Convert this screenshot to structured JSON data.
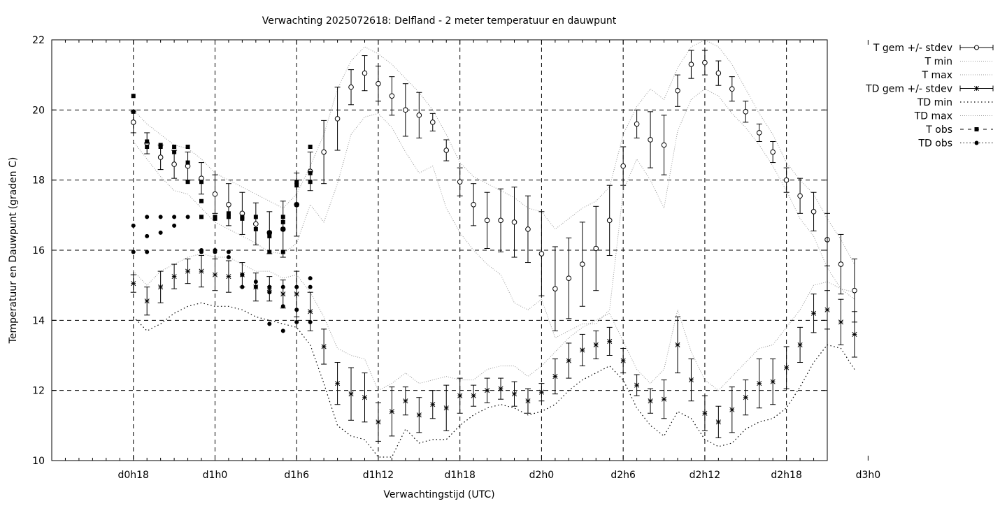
{
  "chart_data": {
    "type": "line",
    "title": "Verwachting 2025072618: Delfland - 2 meter temperatuur en dauwpunt",
    "xlabel": "Verwachtingstijd (UTC)",
    "ylabel": "Temperatuur en Dauwpunt (graden C)",
    "x_unit": "hours since forecast start (2025072618)",
    "xlim": [
      12,
      69
    ],
    "ylim": [
      10,
      22
    ],
    "yticks": [
      10,
      12,
      14,
      16,
      18,
      20,
      22
    ],
    "xticks": [
      {
        "x": 18,
        "label": "d0h18"
      },
      {
        "x": 24,
        "label": "d1h0"
      },
      {
        "x": 30,
        "label": "d1h6"
      },
      {
        "x": 36,
        "label": "d1h12"
      },
      {
        "x": 42,
        "label": "d1h18"
      },
      {
        "x": 48,
        "label": "d2h0"
      },
      {
        "x": 54,
        "label": "d2h6"
      },
      {
        "x": 60,
        "label": "d2h12"
      },
      {
        "x": 66,
        "label": "d2h18"
      },
      {
        "x": 72,
        "label": "d3h0"
      }
    ],
    "grid": true,
    "legend_position": "outside-right",
    "legend": [
      {
        "key": "t_mean",
        "label": "T gem +/- stdev"
      },
      {
        "key": "t_min",
        "label": "T min"
      },
      {
        "key": "t_max",
        "label": "T max"
      },
      {
        "key": "td_mean",
        "label": "TD gem +/- stdev"
      },
      {
        "key": "td_min",
        "label": "TD min"
      },
      {
        "key": "td_max",
        "label": "TD max"
      },
      {
        "key": "t_obs",
        "label": "T obs"
      },
      {
        "key": "td_obs",
        "label": "TD obs"
      }
    ],
    "t_mean": [
      [
        18,
        19.65,
        0.3
      ],
      [
        19,
        19.05,
        0.3
      ],
      [
        20,
        18.65,
        0.35
      ],
      [
        21,
        18.45,
        0.4
      ],
      [
        22,
        18.4,
        0.4
      ],
      [
        23,
        18.05,
        0.45
      ],
      [
        24,
        17.6,
        0.55
      ],
      [
        25,
        17.3,
        0.6
      ],
      [
        26,
        17.05,
        0.6
      ],
      [
        27,
        16.75,
        0.6
      ],
      [
        28,
        16.5,
        0.6
      ],
      [
        29,
        16.6,
        0.8
      ],
      [
        30,
        17.3,
        0.9
      ],
      [
        31,
        18.25,
        0.55
      ],
      [
        32,
        18.8,
        0.9
      ],
      [
        33,
        19.75,
        0.9
      ],
      [
        34,
        20.65,
        0.5
      ],
      [
        35,
        21.05,
        0.5
      ],
      [
        36,
        20.75,
        0.5
      ],
      [
        37,
        20.4,
        0.55
      ],
      [
        38,
        20.0,
        0.75
      ],
      [
        39,
        19.85,
        0.65
      ],
      [
        40,
        19.65,
        0.25
      ],
      [
        41,
        18.85,
        0.3
      ],
      [
        42,
        17.95,
        0.4
      ],
      [
        43,
        17.3,
        0.6
      ],
      [
        44,
        16.85,
        0.8
      ],
      [
        45,
        16.85,
        0.9
      ],
      [
        46,
        16.8,
        1.0
      ],
      [
        47,
        16.6,
        0.95
      ],
      [
        48,
        15.9,
        1.2
      ],
      [
        49,
        14.9,
        1.2
      ],
      [
        50,
        15.2,
        1.15
      ],
      [
        51,
        15.6,
        1.2
      ],
      [
        52,
        16.05,
        1.2
      ],
      [
        53,
        16.85,
        1.0
      ],
      [
        54,
        18.4,
        0.55
      ],
      [
        55,
        19.6,
        0.4
      ],
      [
        56,
        19.15,
        0.8
      ],
      [
        57,
        19.0,
        0.85
      ],
      [
        58,
        20.55,
        0.45
      ],
      [
        59,
        21.3,
        0.4
      ],
      [
        60,
        21.35,
        0.35
      ],
      [
        61,
        21.05,
        0.35
      ],
      [
        62,
        20.6,
        0.35
      ],
      [
        63,
        19.95,
        0.3
      ],
      [
        64,
        19.35,
        0.25
      ],
      [
        65,
        18.8,
        0.3
      ],
      [
        66,
        18.0,
        0.35
      ],
      [
        67,
        17.55,
        0.5
      ],
      [
        68,
        17.1,
        0.55
      ],
      [
        69,
        16.3,
        0.75
      ],
      [
        70,
        15.6,
        0.85
      ],
      [
        71,
        14.85,
        0.9
      ]
    ],
    "td_mean": [
      [
        18,
        15.05,
        0.25
      ],
      [
        19,
        14.55,
        0.4
      ],
      [
        20,
        14.95,
        0.45
      ],
      [
        21,
        15.25,
        0.35
      ],
      [
        22,
        15.4,
        0.35
      ],
      [
        23,
        15.4,
        0.45
      ],
      [
        24,
        15.3,
        0.45
      ],
      [
        25,
        15.25,
        0.45
      ],
      [
        26,
        15.3,
        0.35
      ],
      [
        27,
        14.95,
        0.4
      ],
      [
        28,
        14.9,
        0.35
      ],
      [
        29,
        14.75,
        0.4
      ],
      [
        30,
        14.75,
        0.65
      ],
      [
        31,
        14.25,
        0.55
      ],
      [
        32,
        13.25,
        0.5
      ],
      [
        33,
        12.2,
        0.6
      ],
      [
        34,
        11.9,
        0.75
      ],
      [
        35,
        11.8,
        0.7
      ],
      [
        36,
        11.1,
        0.55
      ],
      [
        37,
        11.4,
        0.7
      ],
      [
        38,
        11.7,
        0.4
      ],
      [
        39,
        11.3,
        0.5
      ],
      [
        40,
        11.6,
        0.4
      ],
      [
        41,
        11.5,
        0.65
      ],
      [
        42,
        11.85,
        0.5
      ],
      [
        43,
        11.85,
        0.3
      ],
      [
        44,
        12.0,
        0.35
      ],
      [
        45,
        12.05,
        0.3
      ],
      [
        46,
        11.9,
        0.35
      ],
      [
        47,
        11.7,
        0.35
      ],
      [
        48,
        11.95,
        0.25
      ],
      [
        49,
        12.4,
        0.5
      ],
      [
        50,
        12.85,
        0.5
      ],
      [
        51,
        13.15,
        0.45
      ],
      [
        52,
        13.3,
        0.4
      ],
      [
        53,
        13.4,
        0.4
      ],
      [
        54,
        12.85,
        0.35
      ],
      [
        55,
        12.15,
        0.3
      ],
      [
        56,
        11.7,
        0.35
      ],
      [
        57,
        11.75,
        0.55
      ],
      [
        58,
        13.3,
        0.8
      ],
      [
        59,
        12.3,
        0.6
      ],
      [
        60,
        11.35,
        0.5
      ],
      [
        61,
        11.1,
        0.45
      ],
      [
        62,
        11.45,
        0.65
      ],
      [
        63,
        11.8,
        0.5
      ],
      [
        64,
        12.2,
        0.7
      ],
      [
        65,
        12.25,
        0.65
      ],
      [
        66,
        12.65,
        0.6
      ],
      [
        67,
        13.3,
        0.5
      ],
      [
        68,
        14.2,
        0.55
      ],
      [
        69,
        14.3,
        0.55
      ],
      [
        70,
        13.95,
        0.65
      ],
      [
        71,
        13.6,
        0.65
      ]
    ],
    "t_min": [
      [
        18,
        19.1
      ],
      [
        19,
        18.6
      ],
      [
        20,
        18.1
      ],
      [
        21,
        17.7
      ],
      [
        22,
        17.6
      ],
      [
        23,
        17.2
      ],
      [
        24,
        16.8
      ],
      [
        25,
        16.6
      ],
      [
        26,
        16.4
      ],
      [
        27,
        16.2
      ],
      [
        28,
        15.95
      ],
      [
        29,
        15.9
      ],
      [
        30,
        16.2
      ],
      [
        31,
        17.3
      ],
      [
        32,
        16.8
      ],
      [
        33,
        17.9
      ],
      [
        34,
        19.3
      ],
      [
        35,
        19.8
      ],
      [
        36,
        19.9
      ],
      [
        37,
        19.5
      ],
      [
        38,
        18.8
      ],
      [
        39,
        18.2
      ],
      [
        40,
        18.4
      ],
      [
        41,
        17.2
      ],
      [
        42,
        16.5
      ],
      [
        43,
        16.0
      ],
      [
        44,
        15.6
      ],
      [
        45,
        15.3
      ],
      [
        46,
        14.5
      ],
      [
        47,
        14.3
      ],
      [
        48,
        14.6
      ],
      [
        49,
        13.5
      ],
      [
        50,
        13.7
      ],
      [
        51,
        13.9
      ],
      [
        52,
        13.9
      ],
      [
        53,
        14.3
      ],
      [
        54,
        17.7
      ],
      [
        55,
        18.6
      ],
      [
        56,
        18.0
      ],
      [
        57,
        17.2
      ],
      [
        58,
        19.4
      ],
      [
        59,
        20.3
      ],
      [
        60,
        20.6
      ],
      [
        61,
        20.4
      ],
      [
        62,
        19.9
      ],
      [
        63,
        19.5
      ],
      [
        64,
        19.0
      ],
      [
        65,
        18.4
      ],
      [
        66,
        17.7
      ],
      [
        67,
        16.9
      ],
      [
        68,
        16.4
      ],
      [
        69,
        15.5
      ],
      [
        70,
        14.9
      ],
      [
        71,
        14.6
      ]
    ],
    "t_max": [
      [
        18,
        20.0
      ],
      [
        19,
        19.6
      ],
      [
        20,
        19.3
      ],
      [
        21,
        19.0
      ],
      [
        22,
        18.9
      ],
      [
        23,
        18.6
      ],
      [
        24,
        18.2
      ],
      [
        25,
        18.0
      ],
      [
        26,
        17.8
      ],
      [
        27,
        17.6
      ],
      [
        28,
        17.4
      ],
      [
        29,
        17.2
      ],
      [
        30,
        17.6
      ],
      [
        31,
        18.4
      ],
      [
        32,
        19.3
      ],
      [
        33,
        20.6
      ],
      [
        34,
        21.4
      ],
      [
        35,
        21.8
      ],
      [
        36,
        21.6
      ],
      [
        37,
        21.3
      ],
      [
        38,
        20.9
      ],
      [
        39,
        20.5
      ],
      [
        40,
        20.0
      ],
      [
        41,
        19.3
      ],
      [
        42,
        18.5
      ],
      [
        43,
        18.1
      ],
      [
        44,
        17.9
      ],
      [
        45,
        17.7
      ],
      [
        46,
        17.5
      ],
      [
        47,
        17.2
      ],
      [
        48,
        17.1
      ],
      [
        49,
        16.6
      ],
      [
        50,
        16.9
      ],
      [
        51,
        17.2
      ],
      [
        52,
        17.4
      ],
      [
        53,
        17.8
      ],
      [
        54,
        19.3
      ],
      [
        55,
        20.1
      ],
      [
        56,
        20.6
      ],
      [
        57,
        20.3
      ],
      [
        58,
        21.2
      ],
      [
        59,
        21.8
      ],
      [
        60,
        22.0
      ],
      [
        61,
        21.8
      ],
      [
        62,
        21.3
      ],
      [
        63,
        20.6
      ],
      [
        64,
        19.9
      ],
      [
        65,
        19.3
      ],
      [
        66,
        18.5
      ],
      [
        67,
        18.0
      ],
      [
        68,
        17.6
      ],
      [
        69,
        16.9
      ],
      [
        70,
        16.3
      ],
      [
        71,
        15.6
      ]
    ],
    "td_min": [
      [
        18,
        14.1
      ],
      [
        19,
        13.7
      ],
      [
        20,
        13.9
      ],
      [
        21,
        14.2
      ],
      [
        22,
        14.4
      ],
      [
        23,
        14.5
      ],
      [
        24,
        14.4
      ],
      [
        25,
        14.4
      ],
      [
        26,
        14.3
      ],
      [
        27,
        14.1
      ],
      [
        28,
        14.0
      ],
      [
        29,
        13.9
      ],
      [
        30,
        13.8
      ],
      [
        31,
        13.3
      ],
      [
        32,
        12.2
      ],
      [
        33,
        11.0
      ],
      [
        34,
        10.7
      ],
      [
        35,
        10.6
      ],
      [
        36,
        10.1
      ],
      [
        37,
        10.1
      ],
      [
        38,
        10.9
      ],
      [
        39,
        10.5
      ],
      [
        40,
        10.6
      ],
      [
        41,
        10.6
      ],
      [
        42,
        11.0
      ],
      [
        43,
        11.3
      ],
      [
        44,
        11.5
      ],
      [
        45,
        11.6
      ],
      [
        46,
        11.5
      ],
      [
        47,
        11.3
      ],
      [
        48,
        11.4
      ],
      [
        49,
        11.6
      ],
      [
        50,
        12.0
      ],
      [
        51,
        12.3
      ],
      [
        52,
        12.5
      ],
      [
        53,
        12.7
      ],
      [
        54,
        12.3
      ],
      [
        55,
        11.5
      ],
      [
        56,
        11.0
      ],
      [
        57,
        10.7
      ],
      [
        58,
        11.4
      ],
      [
        59,
        11.2
      ],
      [
        60,
        10.6
      ],
      [
        61,
        10.4
      ],
      [
        62,
        10.5
      ],
      [
        63,
        10.9
      ],
      [
        64,
        11.1
      ],
      [
        65,
        11.2
      ],
      [
        66,
        11.5
      ],
      [
        67,
        12.1
      ],
      [
        68,
        12.8
      ],
      [
        69,
        13.3
      ],
      [
        70,
        13.2
      ],
      [
        71,
        12.6
      ]
    ],
    "td_max": [
      [
        18,
        15.4
      ],
      [
        19,
        15.0
      ],
      [
        20,
        15.4
      ],
      [
        21,
        15.6
      ],
      [
        22,
        15.8
      ],
      [
        23,
        15.9
      ],
      [
        24,
        15.8
      ],
      [
        25,
        15.8
      ],
      [
        26,
        15.6
      ],
      [
        27,
        15.4
      ],
      [
        28,
        15.4
      ],
      [
        29,
        15.2
      ],
      [
        30,
        15.3
      ],
      [
        31,
        14.8
      ],
      [
        32,
        14.1
      ],
      [
        33,
        13.2
      ],
      [
        34,
        13.0
      ],
      [
        35,
        12.9
      ],
      [
        36,
        12.0
      ],
      [
        37,
        12.2
      ],
      [
        38,
        12.5
      ],
      [
        39,
        12.2
      ],
      [
        40,
        12.3
      ],
      [
        41,
        12.4
      ],
      [
        42,
        12.3
      ],
      [
        43,
        12.3
      ],
      [
        44,
        12.6
      ],
      [
        45,
        12.7
      ],
      [
        46,
        12.7
      ],
      [
        47,
        12.4
      ],
      [
        48,
        12.7
      ],
      [
        49,
        13.1
      ],
      [
        50,
        13.5
      ],
      [
        51,
        13.8
      ],
      [
        52,
        14.0
      ],
      [
        53,
        14.2
      ],
      [
        54,
        13.4
      ],
      [
        55,
        12.6
      ],
      [
        56,
        12.2
      ],
      [
        57,
        12.6
      ],
      [
        58,
        14.3
      ],
      [
        59,
        13.1
      ],
      [
        60,
        12.3
      ],
      [
        61,
        12.0
      ],
      [
        62,
        12.4
      ],
      [
        63,
        12.8
      ],
      [
        64,
        13.2
      ],
      [
        65,
        13.3
      ],
      [
        66,
        13.8
      ],
      [
        67,
        14.3
      ],
      [
        68,
        15.0
      ],
      [
        69,
        15.1
      ],
      [
        70,
        14.9
      ],
      [
        71,
        14.8
      ]
    ],
    "t_obs": [
      [
        18,
        20.4
      ],
      [
        18,
        19.95
      ],
      [
        19,
        19.1
      ],
      [
        19,
        18.95
      ],
      [
        20,
        19.0
      ],
      [
        20,
        18.95
      ],
      [
        21,
        18.95
      ],
      [
        21,
        18.8
      ],
      [
        22,
        18.95
      ],
      [
        22,
        18.5
      ],
      [
        22,
        17.95
      ],
      [
        23,
        17.95
      ],
      [
        23,
        17.4
      ],
      [
        23,
        16.95
      ],
      [
        24,
        16.95
      ],
      [
        24,
        16.9
      ],
      [
        25,
        17.05
      ],
      [
        25,
        16.95
      ],
      [
        26,
        16.95
      ],
      [
        26,
        16.9
      ],
      [
        27,
        16.95
      ],
      [
        27,
        16.6
      ],
      [
        28,
        16.5
      ],
      [
        28,
        16.4
      ],
      [
        28,
        15.95
      ],
      [
        29,
        16.95
      ],
      [
        29,
        16.8
      ],
      [
        29,
        16.6
      ],
      [
        29,
        15.95
      ],
      [
        30,
        17.95
      ],
      [
        30,
        17.85
      ],
      [
        30,
        17.3
      ],
      [
        31,
        18.95
      ],
      [
        31,
        18.2
      ],
      [
        31,
        17.95
      ]
    ],
    "td_obs": [
      [
        18,
        16.7
      ],
      [
        18,
        15.95
      ],
      [
        19,
        16.95
      ],
      [
        19,
        16.4
      ],
      [
        19,
        15.95
      ],
      [
        20,
        16.95
      ],
      [
        20,
        16.5
      ],
      [
        21,
        16.95
      ],
      [
        21,
        16.7
      ],
      [
        22,
        16.95
      ],
      [
        23,
        16.0
      ],
      [
        23,
        15.95
      ],
      [
        24,
        16.0
      ],
      [
        24,
        15.95
      ],
      [
        25,
        15.95
      ],
      [
        25,
        15.8
      ],
      [
        26,
        15.3
      ],
      [
        26,
        14.95
      ],
      [
        27,
        15.1
      ],
      [
        27,
        14.95
      ],
      [
        28,
        14.95
      ],
      [
        28,
        14.8
      ],
      [
        28,
        13.9
      ],
      [
        29,
        14.95
      ],
      [
        29,
        14.4
      ],
      [
        29,
        13.7
      ],
      [
        30,
        14.95
      ],
      [
        30,
        14.3
      ],
      [
        30,
        13.95
      ],
      [
        31,
        15.2
      ],
      [
        31,
        14.95
      ],
      [
        31,
        13.95
      ]
    ]
  }
}
